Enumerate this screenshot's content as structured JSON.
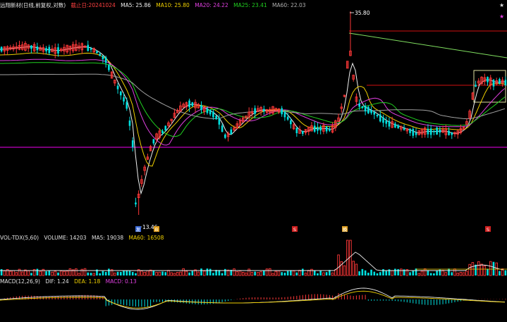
{
  "header": {
    "title": "远翔新材(日线,前复权,对数)",
    "date_label": "截止日:20241024",
    "ma5": "MA5: 25.86",
    "ma10": "MA10: 25.80",
    "ma20": "MA20: 24.22",
    "ma25": "MA25: 23.41",
    "ma60": "MA60: 22.03"
  },
  "volume_panel": {
    "title": "VOL-TDX(5,60)",
    "volume": "VOLUME: 14203",
    "ma5": "MA5: 19038",
    "ma60": "MA60: 16508"
  },
  "macd_panel": {
    "title": "MACD(12,26,9)",
    "dif": "DIF: 1.24",
    "dea": "DEA: 1.18",
    "macd": "MACD: 0.13"
  },
  "annotations": {
    "high_label": "35.80",
    "low_label": "13.46",
    "star_symbol": "★",
    "markers": [
      "发",
      "B",
      "S",
      "换",
      "S"
    ]
  },
  "colors": {
    "up": "#ff3838",
    "down": "#00e0e0",
    "ma5": "#f0f0f0",
    "ma10": "#f0d000",
    "ma20": "#e040e0",
    "ma25": "#20d020",
    "ma60": "#a0a0a0",
    "magenta_line": "#c000c0",
    "trend_green": "#80e060"
  },
  "chart_data": {
    "type": "candlestick",
    "bars": 170,
    "scale": "log",
    "price_high": 35.8,
    "price_low": 13.46,
    "last_ma": {
      "ma5": 25.86,
      "ma10": 25.8,
      "ma20": 24.22,
      "ma25": 23.41,
      "ma60": 22.03
    },
    "volume": {
      "volume": 14203,
      "ma5": 19038,
      "ma60": 16508
    },
    "macd": {
      "dif": 1.24,
      "dea": 1.18,
      "macd": 0.13
    }
  }
}
